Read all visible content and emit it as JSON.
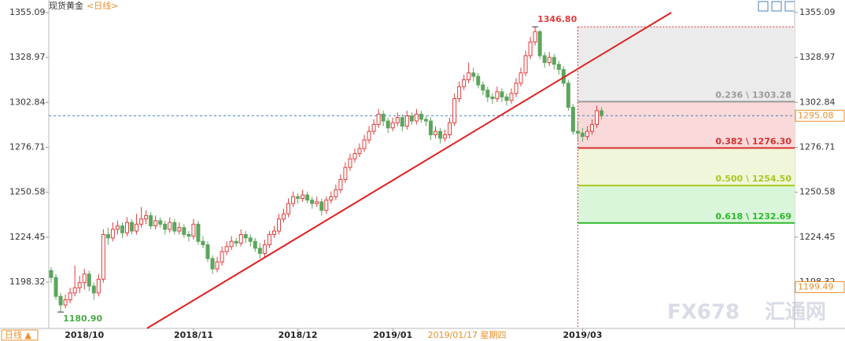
{
  "chart_data": {
    "type": "candlestick",
    "title": "现货黄金",
    "subtitle": "<日线>",
    "period_button": "日线 ▲",
    "watermark": [
      "FX678",
      "汇通网"
    ],
    "crosshair": {
      "label": "2019/01/17 星期四",
      "index": 83
    },
    "ylim": [
      1171.36,
      1359.66
    ],
    "yticks": [
      1198.32,
      1224.45,
      1250.58,
      1276.71,
      1302.84,
      1328.97,
      1355.09
    ],
    "xlim": [
      -0.5,
      156.7
    ],
    "xticks": [
      {
        "value": 7,
        "label": "2018/10"
      },
      {
        "value": 30,
        "label": "2018/11"
      },
      {
        "value": 52,
        "label": "2018/12"
      },
      {
        "value": 72,
        "label": "2019/01"
      },
      {
        "value": 112,
        "label": "2019/03"
      }
    ],
    "grid": false,
    "up_color": "#e03c3c",
    "down_color": "#5da55d",
    "annotations": [
      {
        "value": 1346.8,
        "label": "1346.80",
        "color": "#e03c3c",
        "side": "high"
      },
      {
        "value": 1180.9,
        "label": "1180.90",
        "color": "#4caa4c",
        "side": "low"
      }
    ],
    "price_tags": [
      {
        "value": 1295.08,
        "label": "1295.08",
        "color": "#e8912d",
        "line": true
      },
      {
        "value": 1199.49,
        "label": "1199.49",
        "color": "#e8912d",
        "line": false
      }
    ],
    "trend_line": {
      "x": [
        20.2,
        130.7
      ],
      "y": [
        1171.4,
        1355.1
      ],
      "color": "#e02020"
    },
    "fib": {
      "top": 1346.8,
      "values": [
        1303.28,
        1276.3,
        1254.5,
        1232.69
      ],
      "value_labels": [
        "0.236 \\ 1303.28",
        "0.382 \\ 1276.30",
        "0.500 \\ 1254.50",
        "0.618 \\ 1232.69"
      ],
      "colors": [
        "#9a9a9a",
        "#d63030",
        "#a8c820",
        "#2eb82e"
      ],
      "fills": [
        "#ebebeb",
        "#f9d9d9",
        "#f0f6da",
        "#daf6da"
      ]
    },
    "series": [
      {
        "name": "现货黄金",
        "ohlc": [
          [
            1205,
            1207,
            1198,
            1201
          ],
          [
            1201,
            1203,
            1188,
            1190
          ],
          [
            1190,
            1192,
            1180.9,
            1185
          ],
          [
            1185,
            1191,
            1183,
            1188
          ],
          [
            1188,
            1195,
            1186,
            1192
          ],
          [
            1192,
            1208,
            1190,
            1195
          ],
          [
            1195,
            1202,
            1192,
            1198
          ],
          [
            1198,
            1206,
            1194,
            1203
          ],
          [
            1203,
            1205,
            1193,
            1196
          ],
          [
            1196,
            1198,
            1188,
            1192
          ],
          [
            1192,
            1203,
            1190,
            1200
          ],
          [
            1200,
            1229,
            1198,
            1226
          ],
          [
            1226,
            1230,
            1220,
            1224
          ],
          [
            1224,
            1233,
            1222,
            1229
          ],
          [
            1229,
            1234,
            1226,
            1231
          ],
          [
            1231,
            1233,
            1224,
            1227
          ],
          [
            1227,
            1236,
            1225,
            1233
          ],
          [
            1233,
            1235,
            1226,
            1228
          ],
          [
            1228,
            1238,
            1226,
            1232
          ],
          [
            1232,
            1242,
            1230,
            1235
          ],
          [
            1235,
            1240,
            1232,
            1237
          ],
          [
            1237,
            1239,
            1229,
            1231
          ],
          [
            1231,
            1237,
            1229,
            1234
          ],
          [
            1234,
            1236,
            1230,
            1232
          ],
          [
            1232,
            1234,
            1226,
            1229
          ],
          [
            1229,
            1236,
            1227,
            1233
          ],
          [
            1233,
            1235,
            1226,
            1228
          ],
          [
            1228,
            1233,
            1226,
            1230
          ],
          [
            1230,
            1232,
            1224,
            1226
          ],
          [
            1226,
            1228,
            1222,
            1225
          ],
          [
            1225,
            1235,
            1223,
            1232
          ],
          [
            1232,
            1234,
            1220,
            1222
          ],
          [
            1222,
            1225,
            1218,
            1220
          ],
          [
            1220,
            1222,
            1210,
            1212
          ],
          [
            1212,
            1214,
            1203,
            1206
          ],
          [
            1206,
            1213,
            1204,
            1210
          ],
          [
            1210,
            1219,
            1208,
            1216
          ],
          [
            1216,
            1222,
            1214,
            1219
          ],
          [
            1219,
            1225,
            1217,
            1222
          ],
          [
            1222,
            1224,
            1219,
            1221
          ],
          [
            1221,
            1229,
            1219,
            1226
          ],
          [
            1226,
            1228,
            1221,
            1224
          ],
          [
            1224,
            1226,
            1219,
            1222
          ],
          [
            1222,
            1224,
            1216,
            1218
          ],
          [
            1218,
            1221,
            1212,
            1215
          ],
          [
            1215,
            1223,
            1213,
            1220
          ],
          [
            1220,
            1228,
            1218,
            1226
          ],
          [
            1226,
            1231,
            1224,
            1228
          ],
          [
            1228,
            1238,
            1226,
            1235
          ],
          [
            1235,
            1241,
            1233,
            1238
          ],
          [
            1238,
            1247,
            1236,
            1244
          ],
          [
            1244,
            1251,
            1242,
            1248
          ],
          [
            1248,
            1250,
            1244,
            1247
          ],
          [
            1247,
            1252,
            1245,
            1249
          ],
          [
            1249,
            1251,
            1244,
            1246
          ],
          [
            1246,
            1248,
            1241,
            1244
          ],
          [
            1244,
            1248,
            1242,
            1245
          ],
          [
            1245,
            1247,
            1237,
            1240
          ],
          [
            1240,
            1248,
            1238,
            1246
          ],
          [
            1246,
            1251,
            1244,
            1248
          ],
          [
            1248,
            1255,
            1246,
            1252
          ],
          [
            1252,
            1261,
            1250,
            1258
          ],
          [
            1258,
            1268,
            1256,
            1265
          ],
          [
            1265,
            1273,
            1263,
            1270
          ],
          [
            1270,
            1276,
            1268,
            1273
          ],
          [
            1273,
            1279,
            1271,
            1276
          ],
          [
            1276,
            1284,
            1274,
            1281
          ],
          [
            1281,
            1289,
            1279,
            1286
          ],
          [
            1286,
            1293,
            1284,
            1290
          ],
          [
            1290,
            1299,
            1288,
            1296
          ],
          [
            1296,
            1298,
            1289,
            1292
          ],
          [
            1292,
            1294,
            1285,
            1288
          ],
          [
            1288,
            1294,
            1286,
            1291
          ],
          [
            1291,
            1297,
            1289,
            1294
          ],
          [
            1294,
            1296,
            1286,
            1289
          ],
          [
            1289,
            1298,
            1287,
            1295
          ],
          [
            1295,
            1297,
            1290,
            1292
          ],
          [
            1292,
            1299,
            1290,
            1296
          ],
          [
            1296,
            1298,
            1291,
            1293
          ],
          [
            1293,
            1295,
            1289,
            1292
          ],
          [
            1292,
            1294,
            1281,
            1284
          ],
          [
            1284,
            1289,
            1282,
            1286
          ],
          [
            1286,
            1288,
            1279,
            1282
          ],
          [
            1282,
            1287,
            1280,
            1284
          ],
          [
            1284,
            1294,
            1282,
            1291
          ],
          [
            1291,
            1308,
            1289,
            1305
          ],
          [
            1305,
            1315,
            1303,
            1312
          ],
          [
            1312,
            1319,
            1310,
            1316
          ],
          [
            1316,
            1326,
            1314,
            1320
          ],
          [
            1320,
            1323,
            1315,
            1318
          ],
          [
            1318,
            1320,
            1311,
            1313
          ],
          [
            1313,
            1315,
            1307,
            1310
          ],
          [
            1310,
            1312,
            1303,
            1306
          ],
          [
            1306,
            1308,
            1302,
            1305
          ],
          [
            1305,
            1312,
            1303,
            1309
          ],
          [
            1309,
            1311,
            1303,
            1306
          ],
          [
            1306,
            1308,
            1301,
            1304
          ],
          [
            1304,
            1311,
            1302,
            1308
          ],
          [
            1308,
            1317,
            1306,
            1314
          ],
          [
            1314,
            1323,
            1312,
            1320
          ],
          [
            1320,
            1333,
            1318,
            1330
          ],
          [
            1330,
            1341,
            1328,
            1338
          ],
          [
            1338,
            1346.8,
            1336,
            1344
          ],
          [
            1344,
            1345,
            1328,
            1330
          ],
          [
            1330,
            1332,
            1323,
            1326
          ],
          [
            1326,
            1332,
            1324,
            1329
          ],
          [
            1329,
            1331,
            1322,
            1325
          ],
          [
            1325,
            1327,
            1319,
            1322
          ],
          [
            1322,
            1324,
            1312,
            1314
          ],
          [
            1314,
            1316,
            1298,
            1300
          ],
          [
            1300,
            1302,
            1284,
            1286
          ],
          [
            1286,
            1291,
            1281,
            1285
          ],
          [
            1285,
            1288,
            1280,
            1283
          ],
          [
            1283,
            1289,
            1281,
            1286
          ],
          [
            1286,
            1293,
            1284,
            1290
          ],
          [
            1290,
            1301,
            1288,
            1298
          ],
          [
            1298,
            1300,
            1293,
            1295.08
          ]
        ]
      }
    ]
  }
}
